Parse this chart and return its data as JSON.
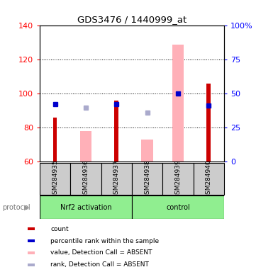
{
  "title": "GDS3476 / 1440999_at",
  "samples": [
    "GSM284935",
    "GSM284936",
    "GSM284937",
    "GSM284938",
    "GSM284939",
    "GSM284940"
  ],
  "ylim_left": [
    60,
    140
  ],
  "ylim_right": [
    0,
    100
  ],
  "yticks_left": [
    60,
    80,
    100,
    120,
    140
  ],
  "yticks_right": [
    0,
    25,
    50,
    75,
    100
  ],
  "ytick_labels_right": [
    "0",
    "25",
    "50",
    "75",
    "100%"
  ],
  "red_bars": [
    86,
    null,
    96,
    null,
    null,
    106
  ],
  "pink_bars": [
    null,
    78,
    null,
    73,
    129,
    null
  ],
  "blue_squares": [
    94,
    null,
    94,
    null,
    100,
    93
  ],
  "light_blue_squares": [
    null,
    92,
    null,
    89,
    null,
    null
  ],
  "red_bar_color": "#CC0000",
  "pink_bar_color": "#FFB0B8",
  "blue_square_color": "#0000CC",
  "light_blue_square_color": "#AAAACC",
  "sample_box_color": "#CCCCCC",
  "group1_label": "Nrf2 activation",
  "group2_label": "control",
  "group_color": "#90EE90",
  "protocol_label": "protocol",
  "legend_items": [
    {
      "color": "#CC0000",
      "label": "count"
    },
    {
      "color": "#0000CC",
      "label": "percentile rank within the sample"
    },
    {
      "color": "#FFB0B8",
      "label": "value, Detection Call = ABSENT"
    },
    {
      "color": "#AAAACC",
      "label": "rank, Detection Call = ABSENT"
    }
  ],
  "fig_width": 3.61,
  "fig_height": 3.84,
  "dpi": 100
}
